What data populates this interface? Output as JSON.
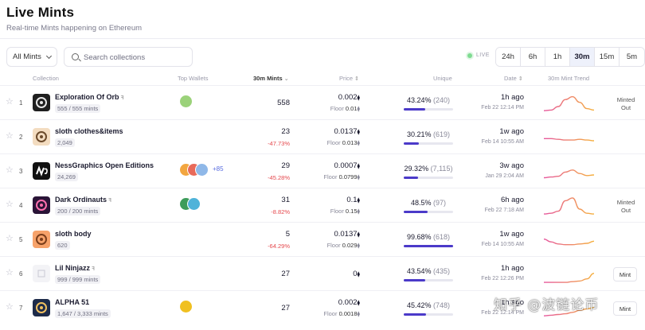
{
  "header": {
    "title": "Live Mints",
    "subtitle": "Real-time Mints happening on Ethereum"
  },
  "toolbar": {
    "filter_value": "All Mints",
    "search_placeholder": "Search collections",
    "live_label": "LIVE",
    "time_tabs": [
      "24h",
      "6h",
      "1h",
      "30m",
      "15m",
      "5m"
    ],
    "active_tab": "30m"
  },
  "columns": {
    "collection": "Collection",
    "top_wallets": "Top Wallets",
    "mints": "30m Mints",
    "price": "Price",
    "unique": "Unique",
    "date": "Date",
    "trend": "30m Mint Trend"
  },
  "colors": {
    "accent": "#4b3ac9",
    "negative": "#e5484d",
    "live": "#7fdb91",
    "trend_start": "#e6569e",
    "trend_end": "#f5b13d"
  },
  "rows": [
    {
      "rank": "1",
      "name": "Exploration Of Orb",
      "verified_icon": "wand-icon",
      "supply": "555 / 555 mints",
      "avatar": {
        "icon": "orb-thumbnail",
        "bg": "#1f1f1f",
        "fg": "#e8e8e8"
      },
      "wallets": [
        {
          "bg": "#9bd27a"
        }
      ],
      "wallets_more": "",
      "mints": "558",
      "mints_change": "",
      "price": "0.002",
      "floor_label": "Floor",
      "floor": "0.01",
      "unique_pct": "43.24%",
      "unique_count": "(240)",
      "unique_value": 43.24,
      "date_rel": "1h ago",
      "date_abs": "Feb 22 12:14 PM",
      "trend": [
        2,
        3,
        8,
        18,
        22,
        14,
        5,
        3
      ],
      "status": "Minted Out",
      "mint_button": ""
    },
    {
      "rank": "2",
      "name": "sloth clothes&items",
      "verified_icon": "",
      "supply": "2,049",
      "avatar": {
        "icon": "sloth-thumbnail",
        "bg": "#f3dcc0",
        "fg": "#6b4a2b"
      },
      "wallets": [],
      "wallets_more": "",
      "mints": "23",
      "mints_change": "-47.73%",
      "price": "0.0137",
      "floor_label": "Floor",
      "floor": "0.013",
      "unique_pct": "30.21%",
      "unique_count": "(619)",
      "unique_value": 30.21,
      "date_rel": "1w ago",
      "date_abs": "Feb 14 10:55 AM",
      "trend": [
        11,
        11,
        10,
        9,
        9,
        10,
        9,
        8
      ],
      "status": "",
      "mint_button": ""
    },
    {
      "rank": "3",
      "name": "NessGraphics Open Editions",
      "verified_icon": "",
      "supply": "24,269",
      "avatar": {
        "icon": "ness-graphics-logo",
        "bg": "#111111",
        "fg": "#ffffff"
      },
      "wallets": [
        {
          "bg": "#f2a640"
        },
        {
          "bg": "#e86a5a"
        },
        {
          "bg": "#8fb8e8"
        }
      ],
      "wallets_more": "+85",
      "mints": "29",
      "mints_change": "-45.28%",
      "price": "0.0007",
      "floor_label": "Floor",
      "floor": "0.0799",
      "unique_pct": "29.32%",
      "unique_count": "(7,115)",
      "unique_value": 29.32,
      "date_rel": "3w ago",
      "date_abs": "Jan 29 2:04 AM",
      "trend": [
        4,
        5,
        6,
        12,
        15,
        10,
        7,
        8
      ],
      "status": "",
      "mint_button": ""
    },
    {
      "rank": "4",
      "name": "Dark Ordinauts",
      "verified_icon": "wand-icon",
      "supply": "200 / 200 mints",
      "avatar": {
        "icon": "ordinaut-thumbnail",
        "bg": "#2a1437",
        "fg": "#ff6fae"
      },
      "wallets": [
        {
          "bg": "#3d9c5a"
        },
        {
          "bg": "#4fb3d9"
        }
      ],
      "wallets_more": "",
      "mints": "31",
      "mints_change": "-8.82%",
      "price": "0.1",
      "floor_label": "Floor",
      "floor": "0.15",
      "unique_pct": "48.5%",
      "unique_count": "(97)",
      "unique_value": 48.5,
      "date_rel": "6h ago",
      "date_abs": "Feb 22 7:18 AM",
      "trend": [
        1,
        2,
        5,
        20,
        24,
        8,
        2,
        1
      ],
      "status": "Minted Out",
      "mint_button": ""
    },
    {
      "rank": "5",
      "name": "sloth body",
      "verified_icon": "",
      "supply": "620",
      "avatar": {
        "icon": "sloth-body-thumbnail",
        "bg": "#f6a26a",
        "fg": "#7a3d1a"
      },
      "wallets": [],
      "wallets_more": "",
      "mints": "5",
      "mints_change": "-64.29%",
      "price": "0.0137",
      "floor_label": "Floor",
      "floor": "0.029",
      "unique_pct": "99.68%",
      "unique_count": "(618)",
      "unique_value": 99.68,
      "date_rel": "1w ago",
      "date_abs": "Feb 14 10:55 AM",
      "trend": [
        14,
        10,
        7,
        6,
        6,
        7,
        8,
        11
      ],
      "status": "",
      "mint_button": ""
    },
    {
      "rank": "6",
      "name": "Lil Ninjazz",
      "verified_icon": "wand-icon",
      "supply": "999 / 999 mints",
      "avatar": {
        "icon": "ninjazz-thumbnail",
        "bg": "#f3f3f6",
        "fg": "#c9c9d4"
      },
      "wallets": [],
      "wallets_more": "",
      "mints": "27",
      "mints_change": "",
      "price": "0",
      "floor_label": "",
      "floor": "",
      "unique_pct": "43.54%",
      "unique_count": "(435)",
      "unique_value": 43.54,
      "date_rel": "1h ago",
      "date_abs": "Feb 22 12:26 PM",
      "trend": [
        1,
        1,
        1,
        1,
        2,
        3,
        6,
        14
      ],
      "status": "",
      "mint_button": "Mint"
    },
    {
      "rank": "7",
      "name": "ALPHA 51",
      "verified_icon": "",
      "supply": "1,647 / 3,333 mints",
      "avatar": {
        "icon": "alpha51-thumbnail",
        "bg": "#1d2b4a",
        "fg": "#f0c060"
      },
      "wallets": [
        {
          "bg": "#f0c020"
        }
      ],
      "wallets_more": "",
      "mints": "27",
      "mints_change": "",
      "price": "0.002",
      "floor_label": "Floor",
      "floor": "0.0018",
      "unique_pct": "45.42%",
      "unique_count": "(748)",
      "unique_value": 45.42,
      "date_rel": "1h ago",
      "date_abs": "Feb 22 12:14 PM",
      "trend": [
        2,
        3,
        4,
        5,
        7,
        10,
        12,
        14
      ],
      "status": "",
      "mint_button": "Mint"
    }
  ],
  "watermark": "知乎 @波链论币"
}
